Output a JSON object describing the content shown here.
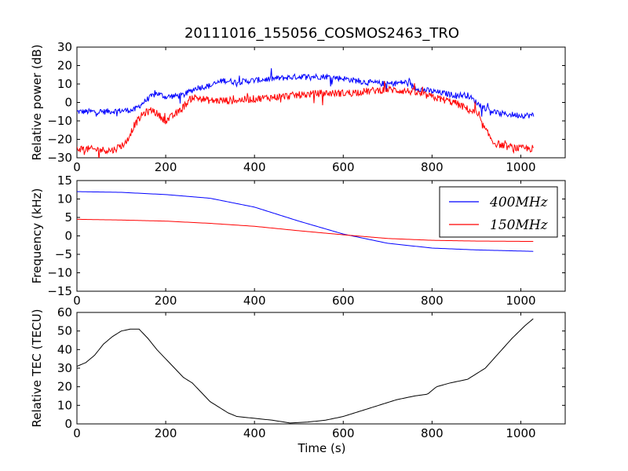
{
  "figure": {
    "title": "20111016_155056_COSMOS2463_TRO",
    "xlabel": "Time (s)"
  },
  "colors": {
    "blue": "#0000ff",
    "red": "#ff0000",
    "black": "#000000"
  },
  "chart_data": [
    {
      "type": "line",
      "id": "power",
      "ylabel": "Relative power (dB)",
      "xlim": [
        0,
        1100
      ],
      "ylim": [
        -30,
        30
      ],
      "xticks": [
        0,
        200,
        400,
        600,
        800,
        1000
      ],
      "yticks": [
        -30,
        -20,
        -10,
        0,
        10,
        20,
        30
      ],
      "series": [
        {
          "color": "#0000ff",
          "noise": 1.6,
          "points": [
            [
              0,
              -5
            ],
            [
              60,
              -5
            ],
            [
              130,
              -4
            ],
            [
              160,
              2
            ],
            [
              180,
              5
            ],
            [
              200,
              3
            ],
            [
              240,
              4
            ],
            [
              270,
              8
            ],
            [
              300,
              9
            ],
            [
              330,
              12
            ],
            [
              360,
              11
            ],
            [
              400,
              12
            ],
            [
              450,
              13
            ],
            [
              500,
              14
            ],
            [
              560,
              14
            ],
            [
              600,
              13
            ],
            [
              650,
              11
            ],
            [
              700,
              10
            ],
            [
              740,
              11
            ],
            [
              760,
              8
            ],
            [
              800,
              6
            ],
            [
              850,
              4
            ],
            [
              880,
              4
            ],
            [
              910,
              -2
            ],
            [
              950,
              -6
            ],
            [
              1000,
              -7
            ],
            [
              1030,
              -7
            ]
          ]
        },
        {
          "color": "#ff0000",
          "noise": 2.0,
          "points": [
            [
              0,
              -25
            ],
            [
              80,
              -26
            ],
            [
              110,
              -22
            ],
            [
              130,
              -12
            ],
            [
              150,
              -6
            ],
            [
              170,
              -4
            ],
            [
              200,
              -10
            ],
            [
              230,
              -5
            ],
            [
              260,
              3
            ],
            [
              300,
              1
            ],
            [
              350,
              1
            ],
            [
              400,
              2
            ],
            [
              450,
              3
            ],
            [
              500,
              4
            ],
            [
              550,
              5
            ],
            [
              600,
              5
            ],
            [
              650,
              6
            ],
            [
              700,
              7
            ],
            [
              750,
              6
            ],
            [
              800,
              3
            ],
            [
              850,
              0
            ],
            [
              900,
              -6
            ],
            [
              920,
              -15
            ],
            [
              940,
              -22
            ],
            [
              970,
              -24
            ],
            [
              1000,
              -25
            ],
            [
              1030,
              -25
            ]
          ]
        }
      ]
    },
    {
      "type": "line",
      "id": "frequency",
      "ylabel": "Frequency (kHz)",
      "xlim": [
        0,
        1100
      ],
      "ylim": [
        -15,
        15
      ],
      "xticks": [
        0,
        200,
        400,
        600,
        800,
        1000
      ],
      "yticks": [
        -15,
        -10,
        -5,
        0,
        5,
        10,
        15
      ],
      "legend_position": "upper-right",
      "series": [
        {
          "name": "400MHz",
          "color": "#0000ff",
          "points": [
            [
              0,
              12
            ],
            [
              100,
              11.8
            ],
            [
              200,
              11.2
            ],
            [
              300,
              10.2
            ],
            [
              400,
              7.8
            ],
            [
              500,
              4
            ],
            [
              600,
              0.5
            ],
            [
              700,
              -2
            ],
            [
              800,
              -3.3
            ],
            [
              900,
              -3.8
            ],
            [
              1030,
              -4.2
            ]
          ]
        },
        {
          "name": "150MHz",
          "color": "#ff0000",
          "points": [
            [
              0,
              4.5
            ],
            [
              100,
              4.3
            ],
            [
              200,
              4
            ],
            [
              300,
              3.4
            ],
            [
              400,
              2.6
            ],
            [
              500,
              1.4
            ],
            [
              600,
              0.3
            ],
            [
              700,
              -0.7
            ],
            [
              800,
              -1.2
            ],
            [
              900,
              -1.4
            ],
            [
              1030,
              -1.5
            ]
          ]
        }
      ]
    },
    {
      "type": "line",
      "id": "tec",
      "ylabel": "Relative TEC (TECU)",
      "xlim": [
        0,
        1100
      ],
      "ylim": [
        0,
        60
      ],
      "xticks": [
        0,
        200,
        400,
        600,
        800,
        1000
      ],
      "yticks": [
        0,
        10,
        20,
        30,
        40,
        50,
        60
      ],
      "series": [
        {
          "color": "#000000",
          "points": [
            [
              0,
              31
            ],
            [
              20,
              33
            ],
            [
              40,
              37
            ],
            [
              60,
              43
            ],
            [
              80,
              47
            ],
            [
              100,
              50
            ],
            [
              120,
              51
            ],
            [
              140,
              51
            ],
            [
              160,
              46
            ],
            [
              180,
              40
            ],
            [
              200,
              35
            ],
            [
              220,
              30
            ],
            [
              240,
              25
            ],
            [
              260,
              22
            ],
            [
              280,
              17
            ],
            [
              300,
              12
            ],
            [
              320,
              9
            ],
            [
              340,
              6
            ],
            [
              360,
              4
            ],
            [
              400,
              3
            ],
            [
              440,
              2
            ],
            [
              480,
              0.5
            ],
            [
              520,
              1
            ],
            [
              560,
              2
            ],
            [
              600,
              4
            ],
            [
              640,
              7
            ],
            [
              680,
              10
            ],
            [
              720,
              13
            ],
            [
              760,
              15
            ],
            [
              790,
              16
            ],
            [
              810,
              20
            ],
            [
              840,
              22
            ],
            [
              880,
              24
            ],
            [
              920,
              30
            ],
            [
              950,
              38
            ],
            [
              980,
              46
            ],
            [
              1010,
              53
            ],
            [
              1030,
              57
            ]
          ]
        }
      ]
    }
  ]
}
